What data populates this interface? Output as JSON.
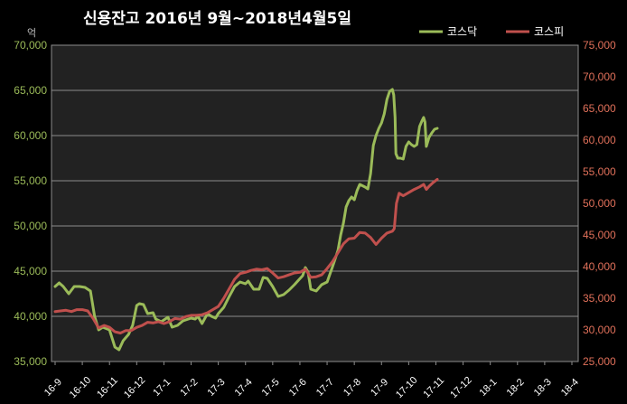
{
  "chart_data": {
    "type": "line",
    "title": "신용잔고 2016년 9월~2018년4월5일",
    "unit_label": "억",
    "grid": true,
    "legend_position": "top-right",
    "x_categories": [
      "16-9",
      "16-10",
      "16-11",
      "16-12",
      "17-1",
      "17-2",
      "17-3",
      "17-4",
      "17-5",
      "17-6",
      "17-7",
      "17-8",
      "17-9",
      "17-10",
      "17-11",
      "17-12",
      "18-1",
      "18-2",
      "18-3",
      "18-4"
    ],
    "y_left": {
      "min": 35000,
      "max": 70000,
      "step": 5000,
      "ticks": [
        "35,000",
        "40,000",
        "45,000",
        "50,000",
        "55,000",
        "60,000",
        "65,000",
        "70,000"
      ]
    },
    "y_right": {
      "min": 25000,
      "max": 75000,
      "step": 5000,
      "ticks": [
        "25,000",
        "30,000",
        "35,000",
        "40,000",
        "45,000",
        "50,000",
        "55,000",
        "60,000",
        "65,000",
        "70,000",
        "75,000"
      ]
    },
    "series": [
      {
        "name": "코스닥",
        "axis": "left",
        "color": "#9bbb59",
        "points": [
          [
            0.0,
            43300
          ],
          [
            0.15,
            43700
          ],
          [
            0.3,
            43300
          ],
          [
            0.5,
            42500
          ],
          [
            0.7,
            43300
          ],
          [
            0.9,
            43300
          ],
          [
            1.1,
            43200
          ],
          [
            1.3,
            42800
          ],
          [
            1.45,
            40000
          ],
          [
            1.6,
            38500
          ],
          [
            1.75,
            38800
          ],
          [
            2.0,
            38500
          ],
          [
            2.2,
            36600
          ],
          [
            2.35,
            36300
          ],
          [
            2.5,
            37300
          ],
          [
            2.7,
            38000
          ],
          [
            2.85,
            39000
          ],
          [
            3.0,
            41200
          ],
          [
            3.1,
            41400
          ],
          [
            3.25,
            41300
          ],
          [
            3.4,
            40300
          ],
          [
            3.6,
            40400
          ],
          [
            3.7,
            39700
          ],
          [
            3.9,
            39400
          ],
          [
            4.0,
            39600
          ],
          [
            4.15,
            39900
          ],
          [
            4.3,
            38800
          ],
          [
            4.5,
            39000
          ],
          [
            4.7,
            39500
          ],
          [
            5.0,
            39800
          ],
          [
            5.15,
            39700
          ],
          [
            5.25,
            40000
          ],
          [
            5.4,
            39200
          ],
          [
            5.6,
            40300
          ],
          [
            5.75,
            40000
          ],
          [
            5.9,
            39800
          ],
          [
            6.0,
            40300
          ],
          [
            6.2,
            41000
          ],
          [
            6.4,
            42200
          ],
          [
            6.6,
            43300
          ],
          [
            6.8,
            43800
          ],
          [
            7.0,
            43600
          ],
          [
            7.1,
            43900
          ],
          [
            7.3,
            43000
          ],
          [
            7.5,
            43000
          ],
          [
            7.65,
            44300
          ],
          [
            7.8,
            44200
          ],
          [
            8.0,
            43300
          ],
          [
            8.2,
            42200
          ],
          [
            8.4,
            42400
          ],
          [
            8.6,
            42900
          ],
          [
            8.8,
            43500
          ],
          [
            8.95,
            44000
          ],
          [
            9.1,
            44500
          ],
          [
            9.2,
            45400
          ],
          [
            9.3,
            44900
          ],
          [
            9.4,
            43000
          ],
          [
            9.6,
            42800
          ],
          [
            9.8,
            43500
          ],
          [
            10.0,
            43800
          ],
          [
            10.2,
            45500
          ],
          [
            10.4,
            47300
          ],
          [
            10.5,
            49000
          ],
          [
            10.6,
            50300
          ],
          [
            10.7,
            52100
          ],
          [
            10.8,
            52800
          ],
          [
            10.9,
            53200
          ],
          [
            11.0,
            52900
          ],
          [
            11.1,
            53900
          ],
          [
            11.2,
            54600
          ],
          [
            11.4,
            54300
          ],
          [
            11.5,
            54100
          ],
          [
            11.6,
            55800
          ],
          [
            11.7,
            58900
          ],
          [
            11.8,
            60000
          ],
          [
            11.9,
            60800
          ],
          [
            12.0,
            61400
          ],
          [
            12.1,
            62400
          ],
          [
            12.2,
            64000
          ],
          [
            12.3,
            64900
          ],
          [
            12.4,
            65100
          ],
          [
            12.45,
            64500
          ],
          [
            12.5,
            62000
          ],
          [
            12.53,
            58000
          ],
          [
            12.6,
            57500
          ],
          [
            12.7,
            57500
          ],
          [
            12.8,
            57400
          ],
          [
            12.9,
            58800
          ],
          [
            13.0,
            59300
          ],
          [
            13.1,
            59000
          ],
          [
            13.2,
            58800
          ],
          [
            13.3,
            59000
          ],
          [
            13.4,
            61000
          ],
          [
            13.5,
            61700
          ],
          [
            13.55,
            62000
          ],
          [
            13.6,
            61500
          ],
          [
            13.65,
            58800
          ],
          [
            13.75,
            59800
          ],
          [
            13.85,
            60300
          ],
          [
            13.95,
            60700
          ],
          [
            14.05,
            60800
          ]
        ]
      },
      {
        "name": "코스피",
        "axis": "right",
        "color": "#c0504d",
        "points": [
          [
            0.0,
            32900
          ],
          [
            0.2,
            33000
          ],
          [
            0.4,
            33100
          ],
          [
            0.6,
            32900
          ],
          [
            0.8,
            33200
          ],
          [
            1.0,
            33200
          ],
          [
            1.2,
            33000
          ],
          [
            1.4,
            31800
          ],
          [
            1.6,
            30300
          ],
          [
            1.8,
            30700
          ],
          [
            2.0,
            30400
          ],
          [
            2.2,
            29700
          ],
          [
            2.4,
            29500
          ],
          [
            2.6,
            29900
          ],
          [
            2.8,
            29900
          ],
          [
            3.0,
            30400
          ],
          [
            3.2,
            30700
          ],
          [
            3.4,
            31200
          ],
          [
            3.6,
            31100
          ],
          [
            3.8,
            31300
          ],
          [
            4.0,
            31000
          ],
          [
            4.2,
            31300
          ],
          [
            4.4,
            31800
          ],
          [
            4.6,
            31700
          ],
          [
            4.8,
            32100
          ],
          [
            5.0,
            32300
          ],
          [
            5.2,
            32300
          ],
          [
            5.4,
            32400
          ],
          [
            5.6,
            32700
          ],
          [
            5.8,
            33200
          ],
          [
            6.0,
            33700
          ],
          [
            6.2,
            35000
          ],
          [
            6.4,
            36500
          ],
          [
            6.6,
            38000
          ],
          [
            6.8,
            38900
          ],
          [
            7.0,
            39100
          ],
          [
            7.2,
            39400
          ],
          [
            7.4,
            39600
          ],
          [
            7.6,
            39500
          ],
          [
            7.8,
            39700
          ],
          [
            8.0,
            39000
          ],
          [
            8.2,
            38200
          ],
          [
            8.4,
            38400
          ],
          [
            8.6,
            38700
          ],
          [
            8.8,
            39000
          ],
          [
            9.0,
            39100
          ],
          [
            9.2,
            39600
          ],
          [
            9.4,
            38300
          ],
          [
            9.6,
            38400
          ],
          [
            9.8,
            38700
          ],
          [
            10.0,
            39700
          ],
          [
            10.2,
            40800
          ],
          [
            10.4,
            42200
          ],
          [
            10.6,
            43600
          ],
          [
            10.8,
            44400
          ],
          [
            11.0,
            44500
          ],
          [
            11.2,
            45400
          ],
          [
            11.4,
            45300
          ],
          [
            11.6,
            44600
          ],
          [
            11.8,
            43500
          ],
          [
            12.0,
            44500
          ],
          [
            12.2,
            45300
          ],
          [
            12.4,
            45600
          ],
          [
            12.47,
            46000
          ],
          [
            12.55,
            50000
          ],
          [
            12.65,
            51600
          ],
          [
            12.8,
            51200
          ],
          [
            13.0,
            51700
          ],
          [
            13.2,
            52200
          ],
          [
            13.4,
            52600
          ],
          [
            13.55,
            53000
          ],
          [
            13.65,
            52200
          ],
          [
            13.75,
            52700
          ],
          [
            13.9,
            53300
          ],
          [
            14.05,
            53800
          ]
        ]
      }
    ]
  }
}
